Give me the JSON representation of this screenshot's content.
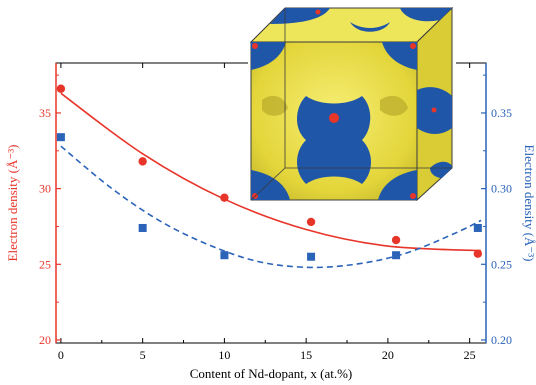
{
  "chart_data": {
    "type": "scatter",
    "xlabel": "Content of Nd-dopant, x (at.%)",
    "ylabel_left": "Electron density (Å⁻³)",
    "ylabel_right": "Electron density (Å⁻³)",
    "xlim": [
      -0.3,
      26
    ],
    "ylim_left": [
      19.8,
      38.3
    ],
    "ylim_right": [
      0.198,
      0.383
    ],
    "x_ticks": [
      0,
      5,
      10,
      15,
      20,
      25
    ],
    "x_tick_labels": [
      "0",
      "5",
      "10",
      "15",
      "20",
      "25"
    ],
    "y_left_ticks": [
      20,
      25,
      30,
      35
    ],
    "y_left_tick_labels": [
      "20",
      "25",
      "30",
      "35"
    ],
    "y_right_ticks": [
      0.2,
      0.25,
      0.3,
      0.35
    ],
    "y_right_tick_labels": [
      "0.20",
      "0.25",
      "0.30",
      "0.35"
    ],
    "grid": false,
    "series": [
      {
        "axis": "left",
        "color": "#e8352a",
        "marker": "circle",
        "x": [
          0,
          5,
          10,
          15.3,
          20.5,
          25.5
        ],
        "values": [
          36.6,
          31.8,
          29.4,
          27.8,
          26.6,
          25.7
        ],
        "fit": {
          "style": "solid",
          "x": [
            0,
            5,
            10,
            15,
            20,
            25.7
          ],
          "values": [
            36.3,
            32.3,
            29.3,
            27.3,
            26.2,
            25.9
          ]
        }
      },
      {
        "axis": "right",
        "color": "#2a63b8",
        "marker": "square",
        "x": [
          0,
          5,
          10,
          15.3,
          20.5,
          25.5
        ],
        "values": [
          0.334,
          0.274,
          0.256,
          0.255,
          0.256,
          0.274
        ],
        "fit": {
          "style": "dashed",
          "x": [
            0,
            3,
            6,
            9,
            12,
            15,
            18,
            21,
            24,
            25.7
          ],
          "values": [
            0.328,
            0.301,
            0.279,
            0.263,
            0.252,
            0.248,
            0.25,
            0.257,
            0.27,
            0.279
          ]
        }
      }
    ],
    "inset": {
      "type": "3d-isosurface-cube",
      "colors": {
        "surface": "#e6dc3c",
        "section": "#1f56a8",
        "atom": "#e8352a"
      }
    }
  }
}
